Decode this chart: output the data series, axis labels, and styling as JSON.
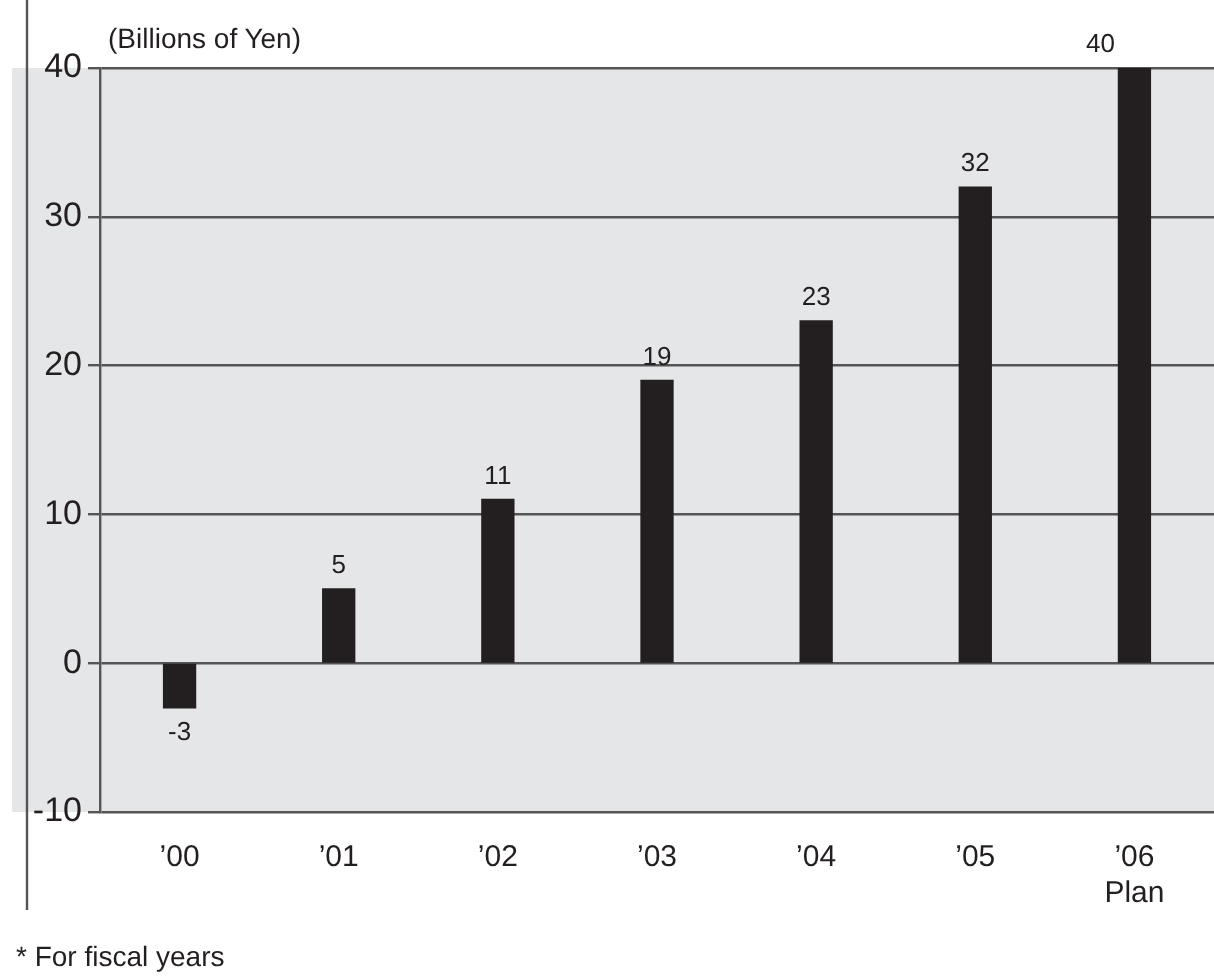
{
  "chart_data": {
    "type": "bar",
    "ylabel": "(Billions of Yen)",
    "categories": [
      "’00",
      "’01",
      "’02",
      "’03",
      "’04",
      "’05",
      "’06\nPlan"
    ],
    "values": [
      -3,
      5,
      11,
      19,
      23,
      32,
      40
    ],
    "color": "#231f20",
    "ylim": [
      -10,
      40
    ],
    "yticks": [
      -10,
      0,
      10,
      20,
      30,
      40
    ],
    "grid": "y",
    "data_labels": true,
    "legend": false,
    "annotations": [
      "* For fiscal years"
    ]
  }
}
